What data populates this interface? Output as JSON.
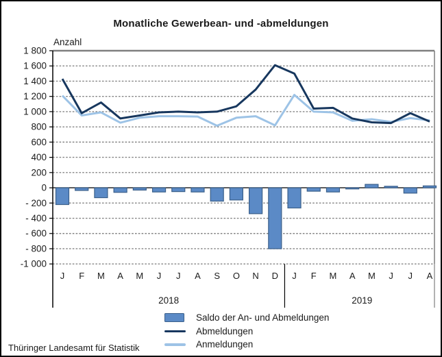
{
  "title": "Monatliche Gewerbean- und -abmeldungen",
  "y_axis_label": "Anzahl",
  "source": "Thüringer Landesamt für Statistik",
  "legend": [
    {
      "label": "Saldo der An- und Abmeldungen"
    },
    {
      "label": "Abmeldungen"
    },
    {
      "label": "Anmeldungen"
    }
  ],
  "colors": {
    "saldo_fill": "#5b8ac6",
    "saldo_border": "#3a5f8a",
    "abmeldungen": "#17375e",
    "anmeldungen": "#9dc3e6",
    "grid": "#848484",
    "frame": "#7f7f7f",
    "axis": "#000000",
    "zero_line": "#262626",
    "text": "#1a1a1a"
  },
  "chart_data": {
    "type": "combo-bar-line",
    "title": "Monatliche Gewerbean- und -abmeldungen",
    "ylabel": "Anzahl",
    "categories": [
      "J",
      "F",
      "M",
      "A",
      "M",
      "J",
      "J",
      "A",
      "S",
      "O",
      "N",
      "D",
      "J",
      "F",
      "M",
      "A",
      "M",
      "J",
      "J",
      "A"
    ],
    "year_groups": [
      {
        "label": "2018",
        "count": 12
      },
      {
        "label": "2019",
        "count": 8
      }
    ],
    "ylim": [
      -1000,
      1800
    ],
    "grid": "dotted horizontal lines every 200, solid line at 0",
    "legend_position": "bottom-center",
    "y_ticks": [
      {
        "v": 1800,
        "label": "1 800"
      },
      {
        "v": 1600,
        "label": "1 600"
      },
      {
        "v": 1400,
        "label": "1 400"
      },
      {
        "v": 1200,
        "label": "1 200"
      },
      {
        "v": 1000,
        "label": "1 000"
      },
      {
        "v": 800,
        "label": "800"
      },
      {
        "v": 600,
        "label": "600"
      },
      {
        "v": 400,
        "label": "400"
      },
      {
        "v": 200,
        "label": "200"
      },
      {
        "v": 0,
        "label": "0"
      },
      {
        "v": -200,
        "label": "- 200"
      },
      {
        "v": -400,
        "label": "- 400"
      },
      {
        "v": -600,
        "label": "- 600"
      },
      {
        "v": -800,
        "label": "- 800"
      },
      {
        "v": -1000,
        "label": "-1 000"
      }
    ],
    "series": [
      {
        "name": "Saldo der An- und Abmeldungen",
        "type": "bar",
        "values": [
          -220,
          -35,
          -130,
          -60,
          -30,
          -55,
          -50,
          -55,
          -175,
          -160,
          -340,
          -800,
          -265,
          -45,
          -55,
          -15,
          45,
          20,
          -70,
          25
        ]
      },
      {
        "name": "Abmeldungen",
        "type": "line",
        "values": [
          1430,
          980,
          1120,
          910,
          950,
          990,
          1000,
          990,
          1000,
          1070,
          1290,
          1610,
          1500,
          1040,
          1050,
          910,
          860,
          850,
          980,
          870
        ]
      },
      {
        "name": "Anmeldungen",
        "type": "line",
        "values": [
          1210,
          950,
          990,
          855,
          920,
          940,
          940,
          935,
          815,
          920,
          940,
          820,
          1220,
          1000,
          990,
          880,
          900,
          865,
          915,
          885
        ]
      }
    ]
  }
}
